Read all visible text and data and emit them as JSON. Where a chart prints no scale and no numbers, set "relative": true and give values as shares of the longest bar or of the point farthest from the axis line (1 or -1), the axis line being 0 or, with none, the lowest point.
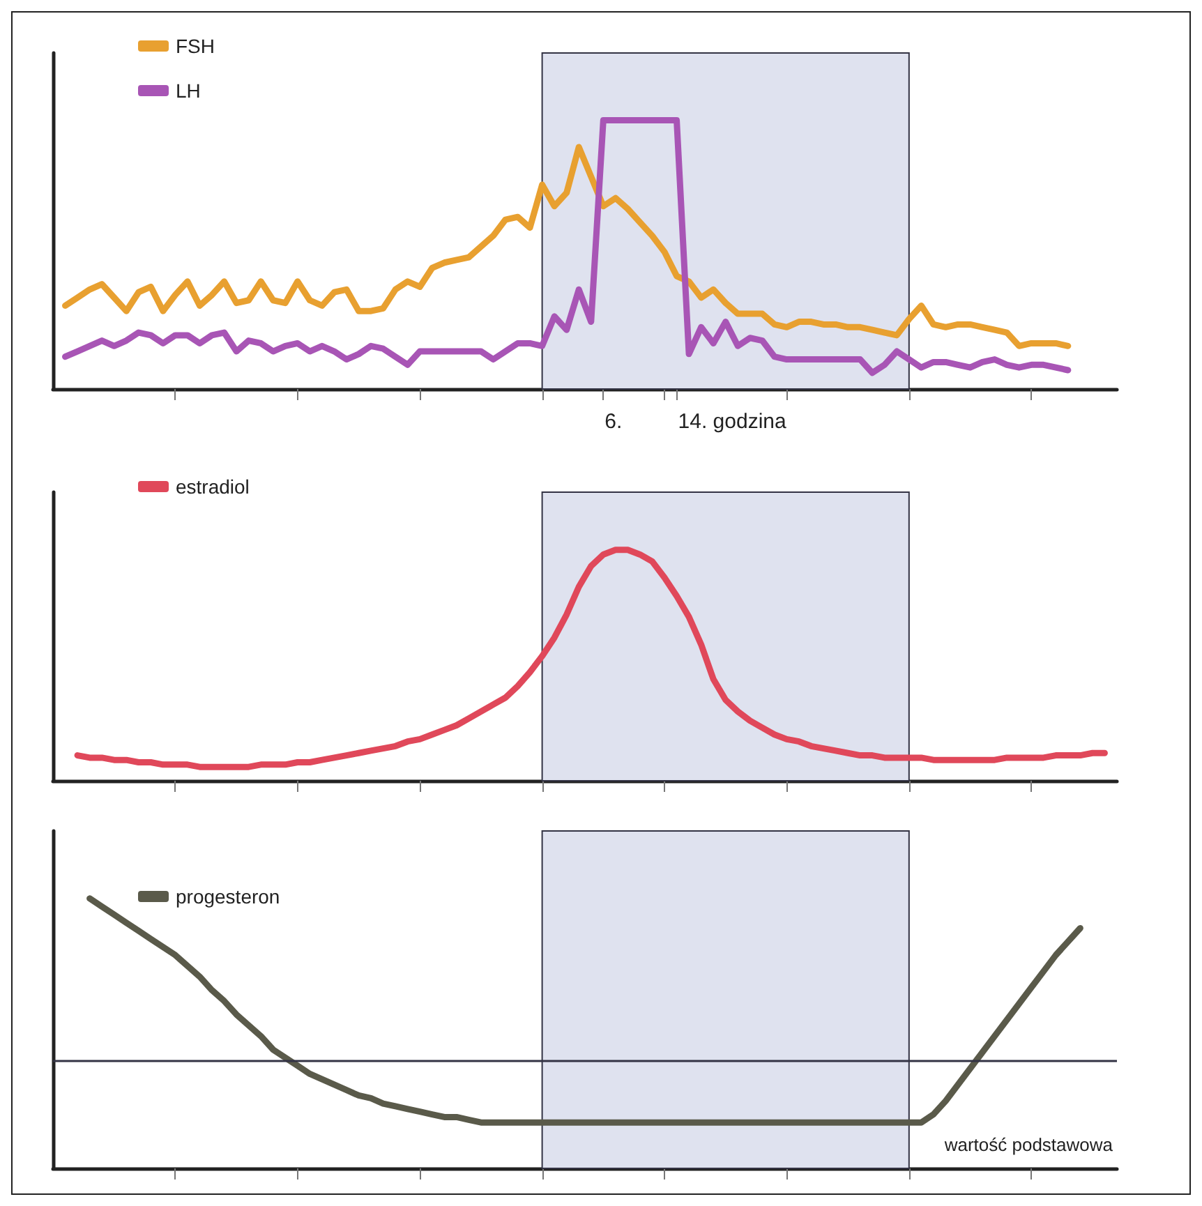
{
  "chart_data": [
    {
      "type": "line",
      "relative": true,
      "legend": "top left",
      "marker": "none",
      "line_style": "solid",
      "categories": [
        null,
        null,
        null,
        null,
        null,
        null,
        null,
        null,
        null,
        null,
        null,
        null,
        null,
        null,
        null,
        null,
        null,
        null,
        null,
        null,
        null,
        null,
        null,
        null,
        null,
        null,
        null,
        null,
        null,
        null,
        null,
        null,
        null,
        null,
        null,
        null,
        null,
        null,
        null,
        null,
        null,
        null,
        null,
        null,
        null,
        null,
        null,
        null,
        null,
        null,
        null,
        null,
        null,
        null,
        null,
        null,
        null,
        null,
        null,
        null,
        null,
        null,
        null,
        null,
        null,
        null,
        null,
        null,
        null,
        null,
        null,
        null,
        null,
        null,
        null,
        null,
        null,
        null,
        null,
        null,
        null,
        null,
        null,
        null,
        null,
        null,
        null,
        null
      ],
      "annotations": [
        "6.",
        "14. godzina"
      ],
      "series": [
        {
          "name": "FSH",
          "color": "#e8a030",
          "values": [
            null,
            0.31,
            0.34,
            0.37,
            0.39,
            0.34,
            0.29,
            0.36,
            0.38,
            0.29,
            0.35,
            0.4,
            0.31,
            0.35,
            0.4,
            0.32,
            0.33,
            0.4,
            0.33,
            0.32,
            0.4,
            0.33,
            0.31,
            0.36,
            0.37,
            0.29,
            0.29,
            0.3,
            0.37,
            0.4,
            0.38,
            0.45,
            0.47,
            0.48,
            0.49,
            0.53,
            0.57,
            0.63,
            0.64,
            0.6,
            0.76,
            0.68,
            0.73,
            0.9,
            0.79,
            0.68,
            0.71,
            0.67,
            0.62,
            0.57,
            0.51,
            0.42,
            0.4,
            0.34,
            0.37,
            0.32,
            0.28,
            0.28,
            0.28,
            0.24,
            0.23,
            0.25,
            0.25,
            0.24,
            0.24,
            0.23,
            0.23,
            0.22,
            0.21,
            0.2,
            0.26,
            0.31,
            0.24,
            0.23,
            0.24,
            0.24,
            0.23,
            0.22,
            0.21,
            0.16,
            0.17,
            0.17,
            0.17,
            0.16,
            null,
            null,
            null,
            null
          ]
        },
        {
          "name": "LH",
          "color": "#a855b5",
          "values": [
            null,
            0.12,
            0.14,
            0.16,
            0.18,
            0.16,
            0.18,
            0.21,
            0.2,
            0.17,
            0.2,
            0.2,
            0.17,
            0.2,
            0.21,
            0.14,
            0.18,
            0.17,
            0.14,
            0.16,
            0.17,
            0.14,
            0.16,
            0.14,
            0.11,
            0.13,
            0.16,
            0.15,
            0.12,
            0.09,
            0.14,
            0.14,
            0.14,
            0.14,
            0.14,
            0.14,
            0.11,
            0.14,
            0.17,
            0.17,
            0.16,
            0.27,
            0.22,
            0.37,
            0.25,
            1.0,
            1.0,
            1.0,
            1.0,
            1.0,
            1.0,
            1.0,
            0.13,
            0.23,
            0.17,
            0.25,
            0.16,
            0.19,
            0.18,
            0.12,
            0.11,
            0.11,
            0.11,
            0.11,
            0.11,
            0.11,
            0.11,
            0.06,
            0.09,
            0.14,
            0.11,
            0.08,
            0.1,
            0.1,
            0.09,
            0.08,
            0.1,
            0.11,
            0.09,
            0.08,
            0.09,
            0.09,
            0.08,
            0.07,
            null,
            null,
            null,
            null
          ]
        }
      ]
    },
    {
      "type": "line",
      "relative": true,
      "legend": "top left",
      "marker": "none",
      "line_style": "solid",
      "categories": [
        null,
        null,
        null,
        null,
        null,
        null,
        null,
        null,
        null,
        null,
        null,
        null,
        null,
        null,
        null,
        null,
        null,
        null,
        null,
        null,
        null,
        null,
        null,
        null,
        null,
        null,
        null,
        null,
        null,
        null,
        null,
        null,
        null,
        null,
        null,
        null,
        null,
        null,
        null,
        null,
        null,
        null,
        null,
        null,
        null,
        null,
        null,
        null,
        null,
        null,
        null,
        null,
        null,
        null,
        null,
        null,
        null,
        null,
        null,
        null,
        null,
        null,
        null,
        null,
        null,
        null,
        null,
        null,
        null,
        null,
        null,
        null,
        null,
        null,
        null,
        null,
        null,
        null,
        null,
        null,
        null,
        null,
        null,
        null,
        null,
        null,
        null,
        null
      ],
      "series": [
        {
          "name": "estradiol",
          "color": "#e0485a",
          "values": [
            null,
            null,
            0.11,
            0.1,
            0.1,
            0.09,
            0.09,
            0.08,
            0.08,
            0.07,
            0.07,
            0.07,
            0.06,
            0.06,
            0.06,
            0.06,
            0.06,
            0.07,
            0.07,
            0.07,
            0.08,
            0.08,
            0.09,
            0.1,
            0.11,
            0.12,
            0.13,
            0.14,
            0.15,
            0.17,
            0.18,
            0.2,
            0.22,
            0.24,
            0.27,
            0.3,
            0.33,
            0.36,
            0.41,
            0.47,
            0.54,
            0.62,
            0.72,
            0.84,
            0.93,
            0.98,
            1.0,
            1.0,
            0.98,
            0.95,
            0.88,
            0.8,
            0.71,
            0.59,
            0.44,
            0.35,
            0.3,
            0.26,
            0.23,
            0.2,
            0.18,
            0.17,
            0.15,
            0.14,
            0.13,
            0.12,
            0.11,
            0.11,
            0.1,
            0.1,
            0.1,
            0.1,
            0.09,
            0.09,
            0.09,
            0.09,
            0.09,
            0.09,
            0.1,
            0.1,
            0.1,
            0.1,
            0.11,
            0.11,
            0.11,
            0.12,
            0.12,
            null
          ]
        }
      ]
    },
    {
      "type": "line",
      "relative": true,
      "legend": "top left",
      "marker": "none",
      "line_style": "solid",
      "categories": [
        null,
        null,
        null,
        null,
        null,
        null,
        null,
        null,
        null,
        null,
        null,
        null,
        null,
        null,
        null,
        null,
        null,
        null,
        null,
        null,
        null,
        null,
        null,
        null,
        null,
        null,
        null,
        null,
        null,
        null,
        null,
        null,
        null,
        null,
        null,
        null,
        null,
        null,
        null,
        null,
        null,
        null,
        null,
        null,
        null,
        null,
        null,
        null,
        null,
        null,
        null,
        null,
        null,
        null,
        null,
        null,
        null,
        null,
        null,
        null,
        null,
        null,
        null,
        null,
        null,
        null,
        null,
        null,
        null,
        null,
        null,
        null,
        null,
        null,
        null,
        null,
        null,
        null,
        null,
        null,
        null,
        null,
        null,
        null,
        null,
        null,
        null,
        null
      ],
      "ref_lines": [
        {
          "axis": "y",
          "value": 0.4,
          "label": "wartość podstawowa",
          "color": "#333344"
        }
      ],
      "series": [
        {
          "name": "progesteron",
          "color": "#5a5a4a",
          "values": [
            null,
            null,
            null,
            1.0,
            0.97,
            0.94,
            0.91,
            0.88,
            0.85,
            0.82,
            0.79,
            0.75,
            0.71,
            0.66,
            0.62,
            0.57,
            0.53,
            0.49,
            0.44,
            0.41,
            0.38,
            0.35,
            0.33,
            0.31,
            0.29,
            0.27,
            0.26,
            0.24,
            0.23,
            0.22,
            0.21,
            0.2,
            0.19,
            0.19,
            0.18,
            0.17,
            0.17,
            0.17,
            0.17,
            0.17,
            0.17,
            0.17,
            0.17,
            0.17,
            0.17,
            0.17,
            0.17,
            0.17,
            0.17,
            0.17,
            0.17,
            0.17,
            0.17,
            0.17,
            0.17,
            0.17,
            0.17,
            0.17,
            0.17,
            0.17,
            0.17,
            0.17,
            0.17,
            0.17,
            0.17,
            0.17,
            0.17,
            0.17,
            0.17,
            0.17,
            0.17,
            0.17,
            0.2,
            0.25,
            0.31,
            0.37,
            0.43,
            0.49,
            0.55,
            0.61,
            0.67,
            0.73,
            0.79,
            0.84,
            0.89,
            null,
            null,
            null
          ]
        }
      ]
    }
  ]
}
